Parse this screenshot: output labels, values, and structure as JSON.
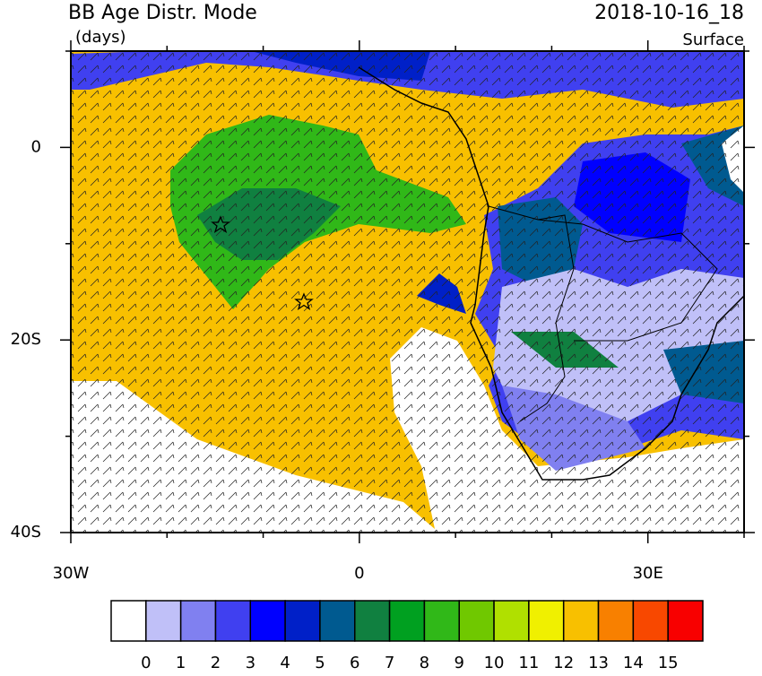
{
  "header": {
    "title": "BB Age Distr. Mode",
    "units": "(days)",
    "time": "2018-10-16_18",
    "level": "Surface"
  },
  "map": {
    "lon_range": [
      -30,
      40
    ],
    "lat_range": [
      -40,
      10
    ],
    "lon_ticks": [
      {
        "value": -30,
        "label": "30W"
      },
      {
        "value": 0,
        "label": "0"
      },
      {
        "value": 30,
        "label": "30E"
      }
    ],
    "lat_ticks": [
      {
        "value": 0,
        "label": "0"
      },
      {
        "value": -20,
        "label": "20S"
      },
      {
        "value": -40,
        "label": "40S"
      }
    ]
  },
  "colorbar": {
    "labels": [
      0,
      1,
      2,
      3,
      4,
      5,
      6,
      7,
      8,
      9,
      10,
      11,
      12,
      13,
      14,
      15
    ],
    "colors": [
      "#ffffff",
      "#c0c0f8",
      "#8080f0",
      "#4040f0",
      "#0000ff",
      "#0020c8",
      "#005a90",
      "#108040",
      "#00a020",
      "#30b818",
      "#70c800",
      "#b0e000",
      "#f0f000",
      "#f8c000",
      "#f88000",
      "#f84800",
      "#f80000"
    ]
  }
}
